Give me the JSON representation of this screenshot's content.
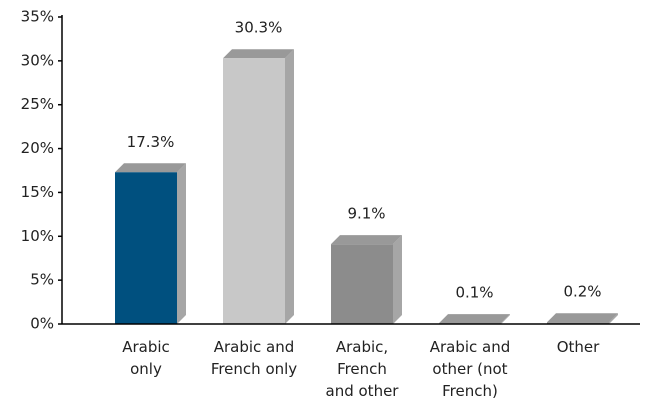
{
  "chart_data": {
    "type": "bar",
    "categories": [
      "Arabic only",
      "Arabic and French only",
      "Arabic, French and other",
      "Arabic and other (not French)",
      "Other"
    ],
    "values": [
      17.3,
      30.3,
      9.1,
      0.1,
      0.2
    ],
    "value_labels": [
      "17.3%",
      "30.3%",
      "9.1%",
      "0.1%",
      "0.2%"
    ],
    "colors": [
      "#00507f",
      "#c8c8c8",
      "#8c8c8c",
      "#8c8c8c",
      "#8c8c8c"
    ],
    "ylim": [
      0,
      35
    ],
    "yticks": [
      {
        "value": 0,
        "label": "0%"
      },
      {
        "value": 5,
        "label": "5%"
      },
      {
        "value": 10,
        "label": "10%"
      },
      {
        "value": 15,
        "label": "15%"
      },
      {
        "value": 20,
        "label": "20%"
      },
      {
        "value": 25,
        "label": "25%"
      },
      {
        "value": 30,
        "label": "30%"
      },
      {
        "value": 35,
        "label": "35%"
      }
    ],
    "grid": false
  }
}
